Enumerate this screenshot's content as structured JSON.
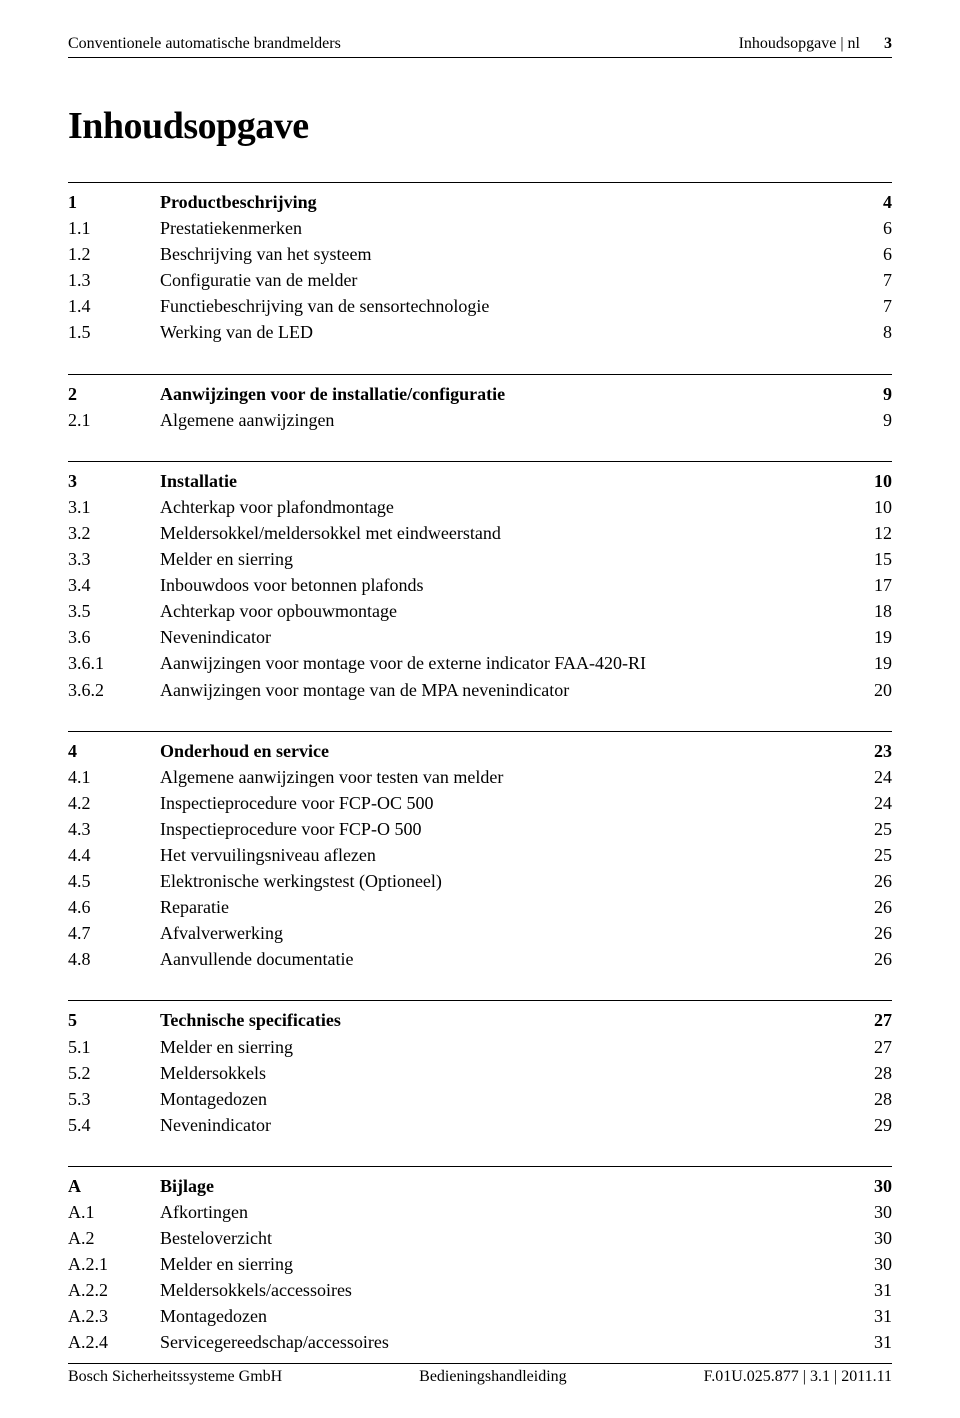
{
  "header": {
    "left": "Conventionele automatische brandmelders",
    "right": "Inhoudsopgave | nl",
    "pagenum": "3"
  },
  "title": "Inhoudsopgave",
  "sections": [
    {
      "head": {
        "num": "1",
        "title": "Productbeschrijving",
        "page": "4"
      },
      "rows": [
        {
          "num": "1.1",
          "title": "Prestatiekenmerken",
          "page": "6"
        },
        {
          "num": "1.2",
          "title": "Beschrijving van het systeem",
          "page": "6"
        },
        {
          "num": "1.3",
          "title": "Configuratie van de melder",
          "page": "7"
        },
        {
          "num": "1.4",
          "title": "Functiebeschrijving van de sensortechnologie",
          "page": "7"
        },
        {
          "num": "1.5",
          "title": "Werking van de LED",
          "page": "8"
        }
      ]
    },
    {
      "head": {
        "num": "2",
        "title": "Aanwijzingen voor de installatie/configuratie",
        "page": "9"
      },
      "rows": [
        {
          "num": "2.1",
          "title": "Algemene aanwijzingen",
          "page": "9"
        }
      ]
    },
    {
      "head": {
        "num": "3",
        "title": "Installatie",
        "page": "10"
      },
      "rows": [
        {
          "num": "3.1",
          "title": "Achterkap voor plafondmontage",
          "page": "10"
        },
        {
          "num": "3.2",
          "title": "Meldersokkel/meldersokkel met eindweerstand",
          "page": "12"
        },
        {
          "num": "3.3",
          "title": "Melder en sierring",
          "page": "15"
        },
        {
          "num": "3.4",
          "title": "Inbouwdoos voor betonnen plafonds",
          "page": "17"
        },
        {
          "num": "3.5",
          "title": "Achterkap voor opbouwmontage",
          "page": "18"
        },
        {
          "num": "3.6",
          "title": "Nevenindicator",
          "page": "19"
        },
        {
          "num": "3.6.1",
          "title": "Aanwijzingen voor montage voor de externe indicator FAA-420-RI",
          "page": "19"
        },
        {
          "num": "3.6.2",
          "title": "Aanwijzingen voor montage van de MPA nevenindicator",
          "page": "20"
        }
      ]
    },
    {
      "head": {
        "num": "4",
        "title": "Onderhoud en service",
        "page": "23"
      },
      "rows": [
        {
          "num": "4.1",
          "title": "Algemene aanwijzingen voor testen van melder",
          "page": "24"
        },
        {
          "num": "4.2",
          "title": "Inspectieprocedure voor FCP-OC 500",
          "page": "24"
        },
        {
          "num": "4.3",
          "title": "Inspectieprocedure voor FCP-O 500",
          "page": "25"
        },
        {
          "num": "4.4",
          "title": "Het vervuilingsniveau aflezen",
          "page": "25"
        },
        {
          "num": "4.5",
          "title": "Elektronische werkingstest (Optioneel)",
          "page": "26"
        },
        {
          "num": "4.6",
          "title": "Reparatie",
          "page": "26"
        },
        {
          "num": "4.7",
          "title": "Afvalverwerking",
          "page": "26"
        },
        {
          "num": "4.8",
          "title": "Aanvullende documentatie",
          "page": "26"
        }
      ]
    },
    {
      "head": {
        "num": "5",
        "title": "Technische specificaties",
        "page": "27"
      },
      "rows": [
        {
          "num": "5.1",
          "title": "Melder en sierring",
          "page": "27"
        },
        {
          "num": "5.2",
          "title": "Meldersokkels",
          "page": "28"
        },
        {
          "num": "5.3",
          "title": "Montagedozen",
          "page": "28"
        },
        {
          "num": "5.4",
          "title": "Nevenindicator",
          "page": "29"
        }
      ]
    },
    {
      "head": {
        "num": "A",
        "title": "Bijlage",
        "page": "30"
      },
      "rows": [
        {
          "num": "A.1",
          "title": "Afkortingen",
          "page": "30"
        },
        {
          "num": "A.2",
          "title": "Besteloverzicht",
          "page": "30"
        },
        {
          "num": "A.2.1",
          "title": "Melder en sierring",
          "page": "30"
        },
        {
          "num": "A.2.2",
          "title": "Meldersokkels/accessoires",
          "page": "31"
        },
        {
          "num": "A.2.3",
          "title": "Montagedozen",
          "page": "31"
        },
        {
          "num": "A.2.4",
          "title": "Servicegereedschap/accessoires",
          "page": "31"
        }
      ]
    }
  ],
  "footer": {
    "left": "Bosch Sicherheitssysteme GmbH",
    "center": "Bedieningshandleiding",
    "right": "F.01U.025.877 | 3.1 | 2011.11"
  }
}
